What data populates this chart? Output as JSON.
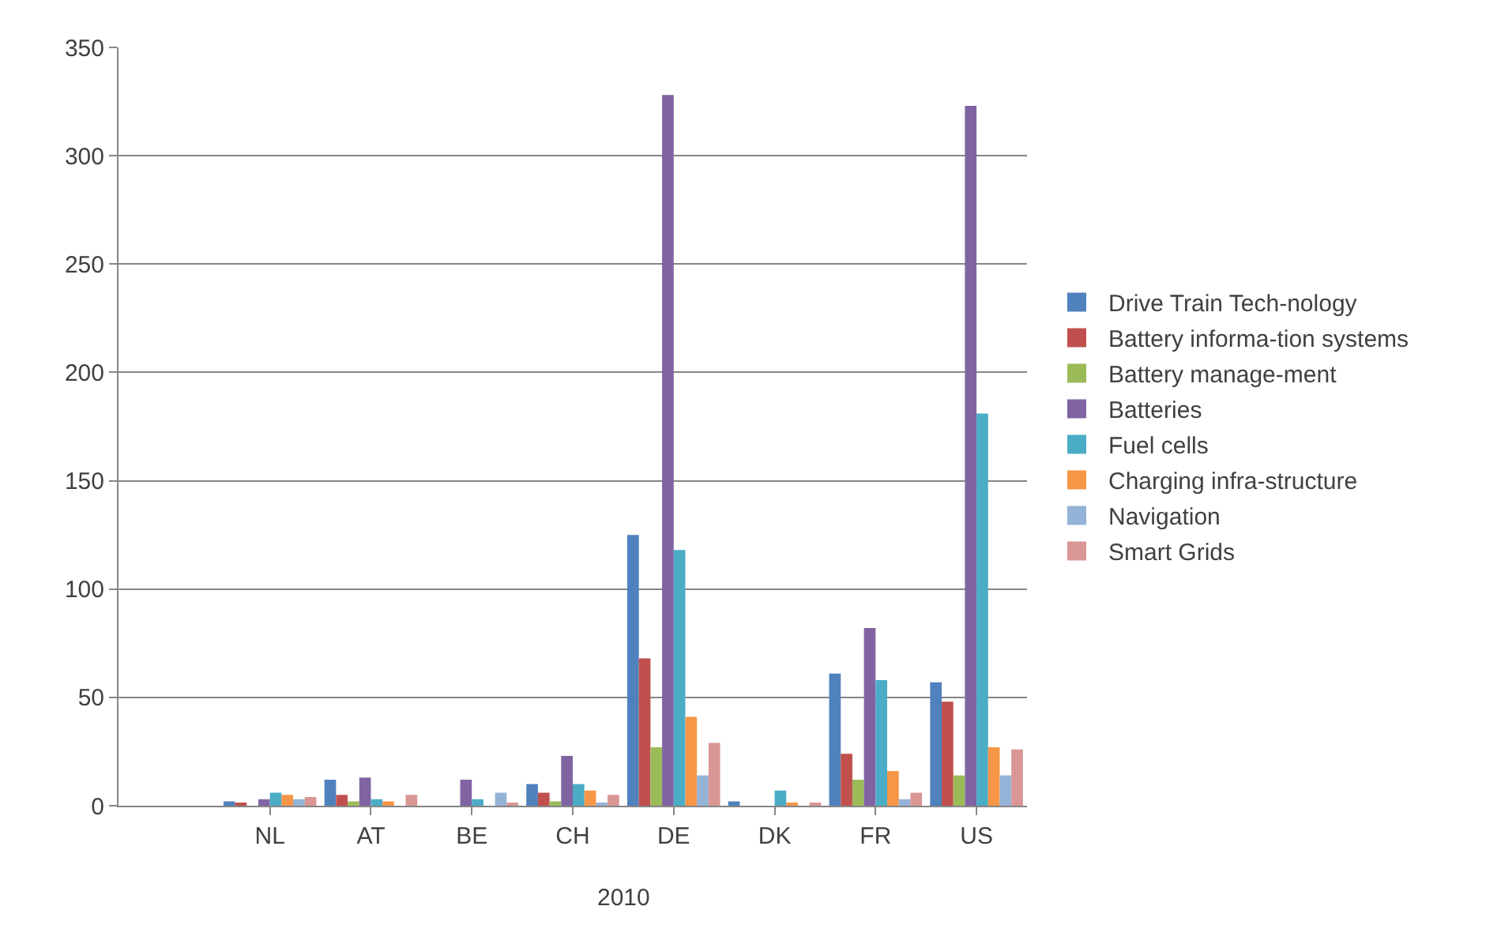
{
  "chart_data": {
    "type": "bar",
    "xlabel": "2010",
    "categories": [
      null,
      "NL",
      "AT",
      "BE",
      "CH",
      "DE",
      "DK",
      "FR",
      "US"
    ],
    "series": [
      {
        "name": "Drive Train Tech-nology",
        "color": "#4f81bd",
        "values": [
          null,
          2,
          12,
          0,
          10,
          125,
          2,
          61,
          57
        ]
      },
      {
        "name": "Battery informa-tion systems",
        "color": "#c0504d",
        "values": [
          null,
          1,
          5,
          0,
          6,
          68,
          0,
          24,
          48
        ]
      },
      {
        "name": "Battery manage-ment",
        "color": "#9bbb59",
        "values": [
          null,
          0,
          2,
          0,
          2,
          27,
          0,
          12,
          14
        ]
      },
      {
        "name": "Batteries",
        "color": "#8064a2",
        "values": [
          null,
          3,
          13,
          12,
          23,
          328,
          0,
          82,
          323
        ]
      },
      {
        "name": "Fuel cells",
        "color": "#4bacc6",
        "values": [
          null,
          6,
          3,
          3,
          10,
          118,
          7,
          58,
          181
        ]
      },
      {
        "name": "Charging infra-structure",
        "color": "#f79646",
        "values": [
          null,
          5,
          2,
          0,
          7,
          41,
          1,
          16,
          27
        ]
      },
      {
        "name": "Navigation",
        "color": "#95b3d7",
        "values": [
          null,
          3,
          0,
          6,
          1,
          14,
          0,
          3,
          14
        ]
      },
      {
        "name": "Smart Grids",
        "color": "#d99694",
        "values": [
          null,
          4,
          5,
          1,
          5,
          29,
          1,
          6,
          26
        ]
      }
    ],
    "ylim": [
      0,
      350
    ],
    "yticks": [
      0,
      50,
      100,
      150,
      200,
      250,
      300,
      350
    ],
    "grid": "y",
    "legend": "right"
  }
}
